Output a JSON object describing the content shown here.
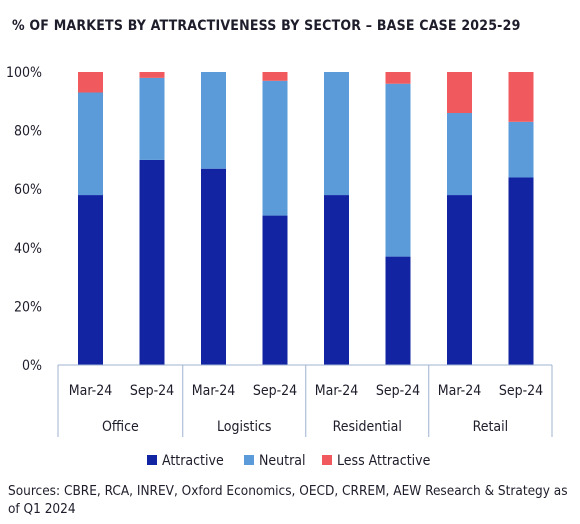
{
  "title": "% OF MARKETS BY ATTRACTIVENESS BY SECTOR – BASE CASE 2025-29",
  "source": "Sources: CBRE, RCA, INREV, Oxford Economics, OECD, CRREM, AEW Research & Strategy as of Q1 2024",
  "chart_data": {
    "type": "bar",
    "stacked": true,
    "groups": [
      "Office",
      "Logistics",
      "Residential",
      "Retail"
    ],
    "categories": [
      "Mar-24",
      "Sep-24",
      "Mar-24",
      "Sep-24",
      "Mar-24",
      "Sep-24",
      "Mar-24",
      "Sep-24"
    ],
    "category_group": [
      0,
      0,
      1,
      1,
      2,
      2,
      3,
      3
    ],
    "series": [
      {
        "name": "Attractive",
        "color": "#1324a3",
        "values": [
          58,
          70,
          67,
          51,
          58,
          37,
          58,
          64
        ]
      },
      {
        "name": "Neutral",
        "color": "#5b9bd9",
        "values": [
          35,
          28,
          33,
          46,
          42,
          59,
          28,
          19
        ]
      },
      {
        "name": "Less Attractive",
        "color": "#f05a5e",
        "values": [
          7,
          2,
          0,
          3,
          0,
          4,
          14,
          17
        ]
      }
    ],
    "ylim": [
      0,
      100
    ],
    "yticks": [
      "0%",
      "20%",
      "40%",
      "60%",
      "80%",
      "100%"
    ],
    "ytick_values": [
      0,
      20,
      40,
      60,
      80,
      100
    ],
    "legend_position": "bottom",
    "grid": false
  }
}
